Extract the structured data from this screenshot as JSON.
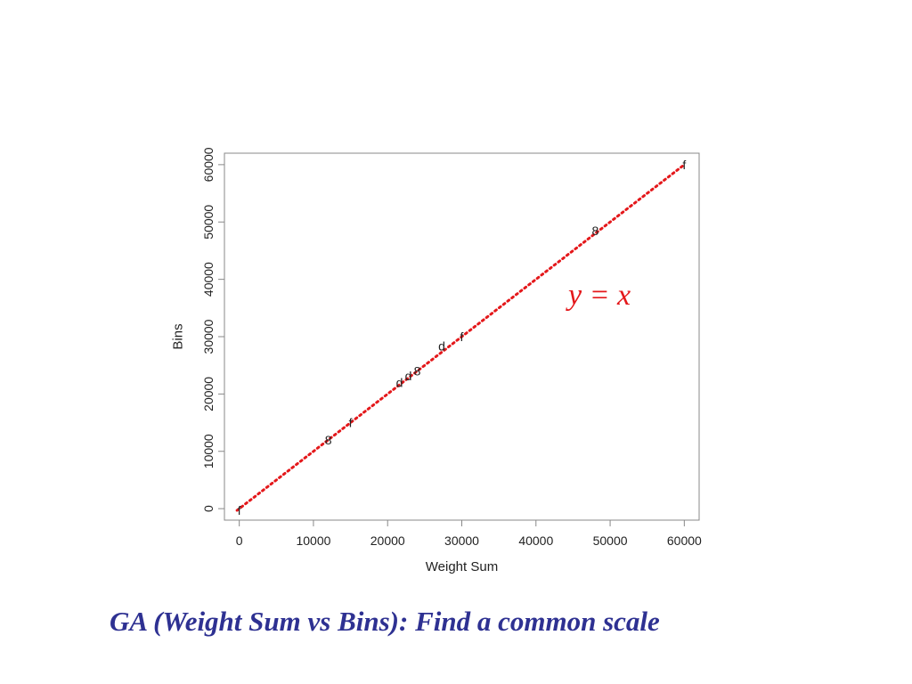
{
  "caption": "GA (Weight Sum vs Bins): Find a common scale",
  "colors": {
    "reference_line": "#e4181b",
    "annotation": "#e4181b",
    "caption": "#2e3192",
    "frame": "#888888",
    "text": "#222222"
  },
  "chart_data": {
    "type": "scatter",
    "title": "",
    "xlabel": "Weight Sum",
    "ylabel": "Bins",
    "xlim": [
      -2000,
      62000
    ],
    "ylim": [
      -2000,
      62000
    ],
    "xticks": [
      0,
      10000,
      20000,
      30000,
      40000,
      50000,
      60000
    ],
    "yticks": [
      0,
      10000,
      20000,
      30000,
      40000,
      50000,
      60000
    ],
    "xtick_labels": [
      "0",
      "10000",
      "20000",
      "30000",
      "40000",
      "50000",
      "60000"
    ],
    "ytick_labels": [
      "0",
      "10000",
      "20000",
      "30000",
      "40000",
      "50000",
      "60000"
    ],
    "grid": false,
    "reference_line": {
      "label": "y = x",
      "style": "dotted",
      "color": "#e4181b",
      "from": [
        -300,
        -300
      ],
      "to": [
        60000,
        60000
      ]
    },
    "points": [
      {
        "x": 0,
        "y": -300,
        "label": "f"
      },
      {
        "x": 12000,
        "y": 12000,
        "label": "8"
      },
      {
        "x": 15000,
        "y": 15000,
        "label": "f"
      },
      {
        "x": 21600,
        "y": 22000,
        "label": "d"
      },
      {
        "x": 22800,
        "y": 23200,
        "label": "d"
      },
      {
        "x": 24000,
        "y": 24000,
        "label": "8"
      },
      {
        "x": 27300,
        "y": 28400,
        "label": "d"
      },
      {
        "x": 30000,
        "y": 30000,
        "label": "f"
      },
      {
        "x": 48000,
        "y": 48500,
        "label": "8"
      },
      {
        "x": 60000,
        "y": 60000,
        "label": "f"
      }
    ]
  }
}
